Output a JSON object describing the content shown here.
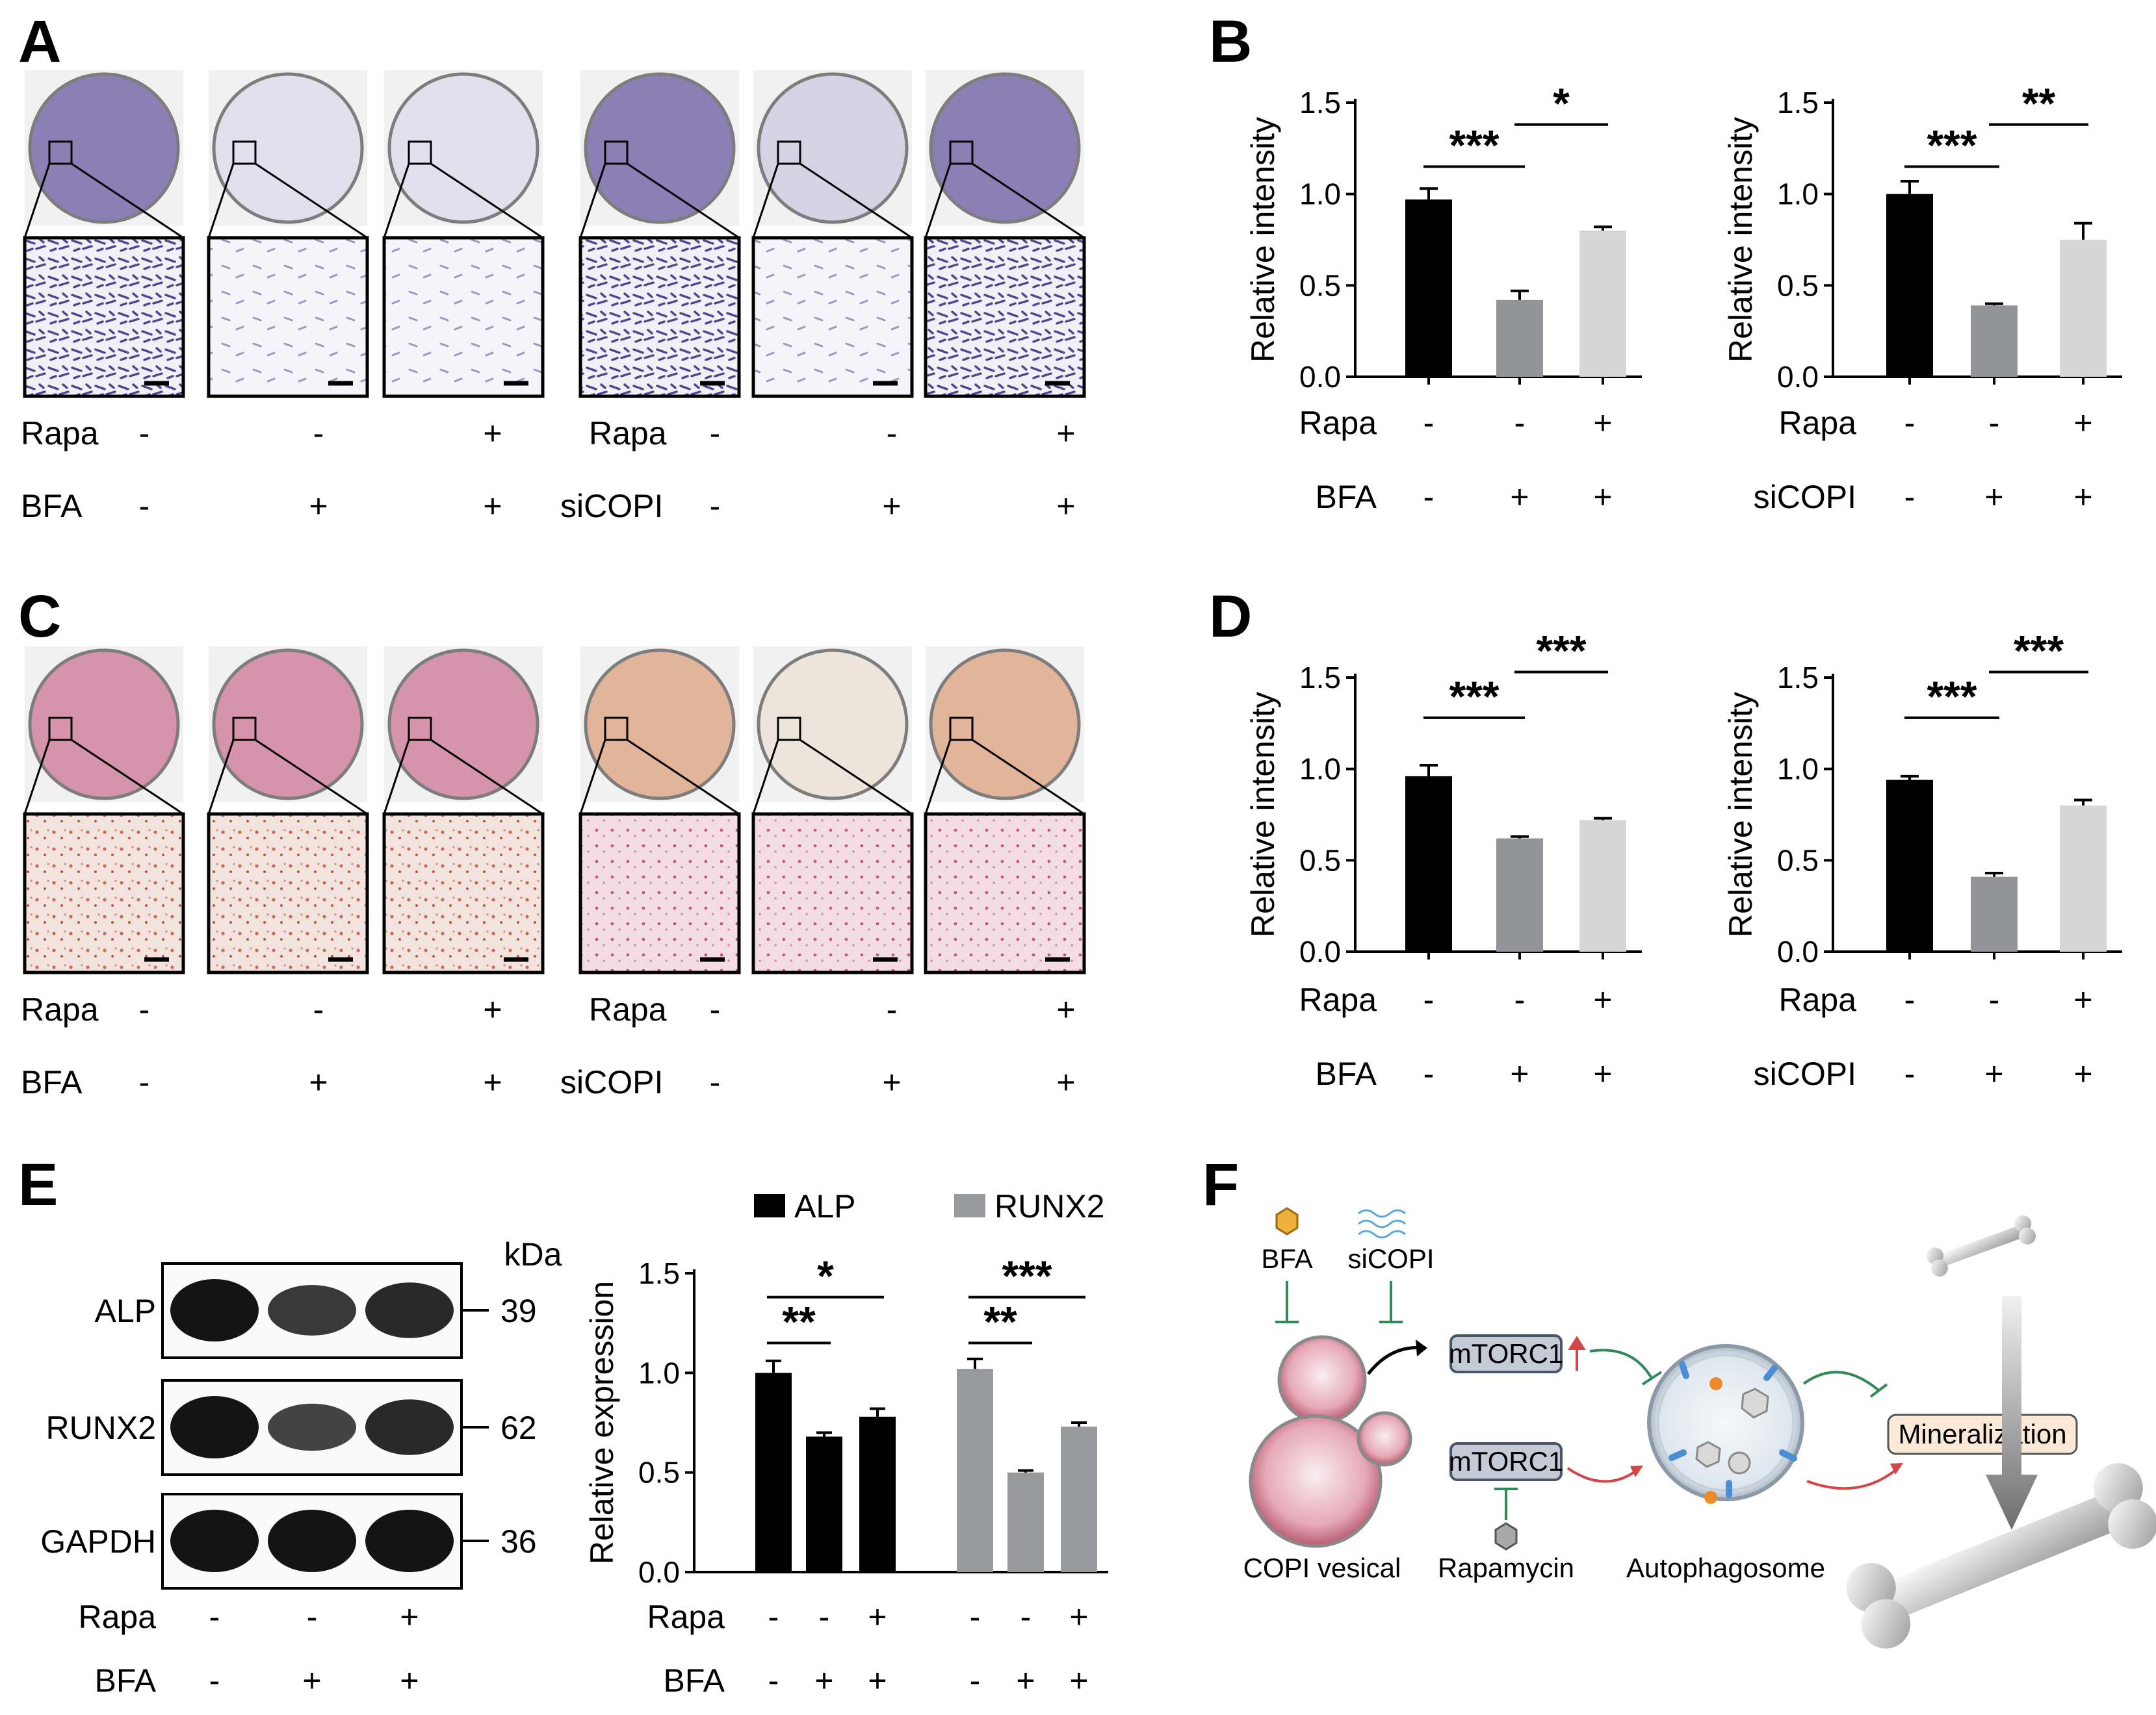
{
  "panels": {
    "a": "A",
    "b": "B",
    "c": "C",
    "d": "D",
    "e": "E",
    "f": "F"
  },
  "plus": "+",
  "minus": "-",
  "rows": {
    "rapa": "Rapa",
    "bfa": "BFA",
    "sicopi": "siCOPI"
  },
  "treatments": {
    "bfa_set": {
      "rapa": [
        "-",
        "-",
        "+"
      ],
      "bfa": [
        "-",
        "+",
        "+"
      ]
    },
    "sicopi_set": {
      "rapa": [
        "-",
        "-",
        "+"
      ],
      "sicopi": [
        "-",
        "+",
        "+"
      ]
    }
  },
  "stain_colors": {
    "alp_plate": "#8c7fb5",
    "alp_cells": "#54438f",
    "ars_plate": "#d693ac",
    "ars_cells": "#c96b4d",
    "ars_plate_sicopi": "#e2b49a"
  },
  "western": {
    "unit": "kDa",
    "bands": [
      {
        "protein": "ALP",
        "kda": "39",
        "intensity": [
          1.0,
          0.65,
          0.8
        ]
      },
      {
        "protein": "RUNX2",
        "kda": "62",
        "intensity": [
          1.0,
          0.55,
          0.8
        ]
      },
      {
        "protein": "GAPDH",
        "kda": "36",
        "intensity": [
          1.0,
          1.0,
          1.0
        ]
      }
    ],
    "rapa": [
      "-",
      "-",
      "+"
    ],
    "bfa": [
      "-",
      "+",
      "+"
    ]
  },
  "chart_data": [
    {
      "panel": "B",
      "type": "bar",
      "ylabel": "Relative intensity",
      "ylim": [
        0,
        1.5
      ],
      "yticks": [
        "0.0",
        "0.5",
        "1.0",
        "1.5"
      ],
      "values": [
        0.97,
        0.42,
        0.8
      ],
      "errors": [
        0.06,
        0.05,
        0.02
      ],
      "colors": [
        "#000000",
        "#939497",
        "#d6d6d6"
      ],
      "rows": [
        {
          "label": "Rapa",
          "marks": [
            "-",
            "-",
            "+"
          ]
        },
        {
          "label": "BFA",
          "marks": [
            "-",
            "+",
            "+"
          ]
        }
      ],
      "significance": [
        {
          "from": 0,
          "to": 1,
          "label": "***",
          "y": 1.15
        },
        {
          "from": 1,
          "to": 2,
          "label": "*",
          "y": 1.38
        }
      ]
    },
    {
      "panel": "B",
      "type": "bar",
      "ylabel": "Relative intensity",
      "ylim": [
        0,
        1.5
      ],
      "yticks": [
        "0.0",
        "0.5",
        "1.0",
        "1.5"
      ],
      "values": [
        1.0,
        0.39,
        0.75
      ],
      "errors": [
        0.07,
        0.01,
        0.09
      ],
      "colors": [
        "#000000",
        "#939497",
        "#d6d6d6"
      ],
      "rows": [
        {
          "label": "Rapa",
          "marks": [
            "-",
            "-",
            "+"
          ]
        },
        {
          "label": "siCOPI",
          "marks": [
            "-",
            "+",
            "+"
          ]
        }
      ],
      "significance": [
        {
          "from": 0,
          "to": 1,
          "label": "***",
          "y": 1.15
        },
        {
          "from": 1,
          "to": 2,
          "label": "**",
          "y": 1.38
        }
      ]
    },
    {
      "panel": "D",
      "type": "bar",
      "ylabel": "Relative intensity",
      "ylim": [
        0,
        1.5
      ],
      "yticks": [
        "0.0",
        "0.5",
        "1.0",
        "1.5"
      ],
      "values": [
        0.96,
        0.62,
        0.72
      ],
      "errors": [
        0.06,
        0.01,
        0.01
      ],
      "colors": [
        "#000000",
        "#939497",
        "#d6d6d6"
      ],
      "rows": [
        {
          "label": "Rapa",
          "marks": [
            "-",
            "-",
            "+"
          ]
        },
        {
          "label": "BFA",
          "marks": [
            "-",
            "+",
            "+"
          ]
        }
      ],
      "significance": [
        {
          "from": 0,
          "to": 1,
          "label": "***",
          "y": 1.28
        },
        {
          "from": 1,
          "to": 2,
          "label": "***",
          "y": 1.53
        }
      ]
    },
    {
      "panel": "D",
      "type": "bar",
      "ylabel": "Relative intensity",
      "ylim": [
        0,
        1.5
      ],
      "yticks": [
        "0.0",
        "0.5",
        "1.0",
        "1.5"
      ],
      "values": [
        0.94,
        0.41,
        0.8
      ],
      "errors": [
        0.02,
        0.02,
        0.03
      ],
      "colors": [
        "#000000",
        "#939497",
        "#d6d6d6"
      ],
      "rows": [
        {
          "label": "Rapa",
          "marks": [
            "-",
            "-",
            "+"
          ]
        },
        {
          "label": "siCOPI",
          "marks": [
            "-",
            "+",
            "+"
          ]
        }
      ],
      "significance": [
        {
          "from": 0,
          "to": 1,
          "label": "***",
          "y": 1.28
        },
        {
          "from": 1,
          "to": 2,
          "label": "***",
          "y": 1.53
        }
      ]
    },
    {
      "panel": "E",
      "type": "bar",
      "ylabel": "Relative expression",
      "ylim": [
        0,
        1.5
      ],
      "yticks": [
        "0.0",
        "0.5",
        "1.0",
        "1.5"
      ],
      "series": [
        {
          "name": "ALP",
          "color": "#000000",
          "values": [
            1.0,
            0.68,
            0.78
          ],
          "errors": [
            0.06,
            0.02,
            0.04
          ]
        },
        {
          "name": "RUNX2",
          "color": "#98999c",
          "values": [
            1.02,
            0.5,
            0.73
          ],
          "errors": [
            0.05,
            0.01,
            0.02
          ]
        }
      ],
      "rows": [
        {
          "label": "Rapa",
          "marks": [
            "-",
            "-",
            "+"
          ]
        },
        {
          "label": "BFA",
          "marks": [
            "-",
            "+",
            "+"
          ]
        }
      ],
      "significance": [
        {
          "group": 0,
          "from": 0,
          "to": 1,
          "label": "**",
          "y": 1.15
        },
        {
          "group": 0,
          "from": 0,
          "to": 2,
          "label": "*",
          "y": 1.38
        },
        {
          "group": 1,
          "from": 0,
          "to": 1,
          "label": "**",
          "y": 1.15
        },
        {
          "group": 1,
          "from": 0,
          "to": 2,
          "label": "***",
          "y": 1.38
        }
      ]
    }
  ],
  "schematic": {
    "bfa": "BFA",
    "sicopi": "siCOPI",
    "mtorc1": "mTORC1",
    "copi": "COPI vesical",
    "rapamycin": "Rapamycin",
    "autophagosome": "Autophagosome",
    "mineralization": "Mineralization",
    "arrow_green": "#2f8a57",
    "arrow_red": "#d64545",
    "box_fill": "#c5cbd6",
    "mineral_fill": "#fbe9d8"
  }
}
